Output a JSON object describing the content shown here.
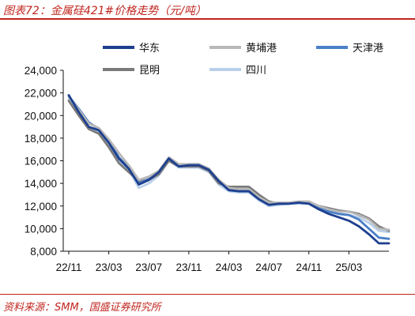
{
  "figure": {
    "title": "图表72：金属硅421#价格走势（元/吨）",
    "source": "资料来源：SMM，国盛证券研究所"
  },
  "chart_data": {
    "type": "line",
    "title": "图表72：金属硅421#价格走势（元/吨）",
    "xlabel": "",
    "ylabel": "",
    "y_unit": "元/吨",
    "ylim": [
      8000,
      24000
    ],
    "y_ticks": [
      8000,
      10000,
      12000,
      14000,
      16000,
      18000,
      20000,
      22000,
      24000
    ],
    "y_tick_labels": [
      "8,000",
      "10,000",
      "12,000",
      "14,000",
      "16,000",
      "18,000",
      "20,000",
      "22,000",
      "24,000"
    ],
    "x_range": [
      "2022-11",
      "2025-07"
    ],
    "x_ticks": [
      "2022-11",
      "2023-03",
      "2023-07",
      "2023-11",
      "2024-03",
      "2024-07",
      "2024-11",
      "2025-03"
    ],
    "x_tick_labels": [
      "22/11",
      "23/03",
      "23/07",
      "23/11",
      "24/03",
      "24/07",
      "24/11",
      "25/03"
    ],
    "grid": false,
    "legend": "top",
    "series": [
      {
        "name": "华东",
        "color": "#1d3f8f",
        "width": 2.8,
        "points": [
          [
            "2022-11",
            21800
          ],
          [
            "2022-12",
            20300
          ],
          [
            "2023-01",
            19000
          ],
          [
            "2023-02",
            18700
          ],
          [
            "2023-03",
            17600
          ],
          [
            "2023-04",
            16200
          ],
          [
            "2023-05",
            15300
          ],
          [
            "2023-06",
            13900
          ],
          [
            "2023-07",
            14300
          ],
          [
            "2023-08",
            15000
          ],
          [
            "2023-09",
            16200
          ],
          [
            "2023-10",
            15500
          ],
          [
            "2023-11",
            15600
          ],
          [
            "2023-12",
            15600
          ],
          [
            "2024-01",
            15200
          ],
          [
            "2024-02",
            14200
          ],
          [
            "2024-03",
            13400
          ],
          [
            "2024-04",
            13300
          ],
          [
            "2024-05",
            13300
          ],
          [
            "2024-06",
            12600
          ],
          [
            "2024-07",
            12100
          ],
          [
            "2024-08",
            12200
          ],
          [
            "2024-09",
            12200
          ],
          [
            "2024-10",
            12300
          ],
          [
            "2024-11",
            12200
          ],
          [
            "2024-12",
            11700
          ],
          [
            "2025-01",
            11300
          ],
          [
            "2025-02",
            11000
          ],
          [
            "2025-03",
            10700
          ],
          [
            "2025-04",
            10200
          ],
          [
            "2025-05",
            9500
          ],
          [
            "2025-06",
            8700
          ],
          [
            "2025-07",
            8700
          ]
        ]
      },
      {
        "name": "黄埔港",
        "color": "#b8b8b8",
        "width": 2.8,
        "points": [
          [
            "2022-11",
            21700
          ],
          [
            "2022-12",
            20500
          ],
          [
            "2023-01",
            19300
          ],
          [
            "2023-02",
            18900
          ],
          [
            "2023-03",
            17900
          ],
          [
            "2023-04",
            16700
          ],
          [
            "2023-05",
            15600
          ],
          [
            "2023-06",
            14300
          ],
          [
            "2023-07",
            14600
          ],
          [
            "2023-08",
            15100
          ],
          [
            "2023-09",
            16300
          ],
          [
            "2023-10",
            15700
          ],
          [
            "2023-11",
            15700
          ],
          [
            "2023-12",
            15700
          ],
          [
            "2024-01",
            15300
          ],
          [
            "2024-02",
            14300
          ],
          [
            "2024-03",
            13600
          ],
          [
            "2024-04",
            13500
          ],
          [
            "2024-05",
            13500
          ],
          [
            "2024-06",
            12800
          ],
          [
            "2024-07",
            12300
          ],
          [
            "2024-08",
            12300
          ],
          [
            "2024-09",
            12300
          ],
          [
            "2024-10",
            12400
          ],
          [
            "2024-11",
            12400
          ],
          [
            "2024-12",
            12000
          ],
          [
            "2025-01",
            11700
          ],
          [
            "2025-02",
            11500
          ],
          [
            "2025-03",
            11500
          ],
          [
            "2025-04",
            11200
          ],
          [
            "2025-05",
            10800
          ],
          [
            "2025-06",
            10000
          ],
          [
            "2025-07",
            9900
          ]
        ]
      },
      {
        "name": "天津港",
        "color": "#4a7fc8",
        "width": 2.8,
        "points": [
          [
            "2022-11",
            21700
          ],
          [
            "2022-12",
            20600
          ],
          [
            "2023-01",
            19400
          ],
          [
            "2023-02",
            18800
          ],
          [
            "2023-03",
            17800
          ],
          [
            "2023-04",
            16300
          ],
          [
            "2023-05",
            15400
          ],
          [
            "2023-06",
            14000
          ],
          [
            "2023-07",
            14400
          ],
          [
            "2023-08",
            15000
          ],
          [
            "2023-09",
            16200
          ],
          [
            "2023-10",
            15600
          ],
          [
            "2023-11",
            15700
          ],
          [
            "2023-12",
            15700
          ],
          [
            "2024-01",
            15300
          ],
          [
            "2024-02",
            14200
          ],
          [
            "2024-03",
            13500
          ],
          [
            "2024-04",
            13400
          ],
          [
            "2024-05",
            13400
          ],
          [
            "2024-06",
            12700
          ],
          [
            "2024-07",
            12200
          ],
          [
            "2024-08",
            12200
          ],
          [
            "2024-09",
            12200
          ],
          [
            "2024-10",
            12300
          ],
          [
            "2024-11",
            12300
          ],
          [
            "2024-12",
            11900
          ],
          [
            "2025-01",
            11500
          ],
          [
            "2025-02",
            11300
          ],
          [
            "2025-03",
            11200
          ],
          [
            "2025-04",
            10800
          ],
          [
            "2025-05",
            10000
          ],
          [
            "2025-06",
            9200
          ],
          [
            "2025-07",
            9100
          ]
        ]
      },
      {
        "name": "昆明",
        "color": "#7a7a7a",
        "width": 2.8,
        "points": [
          [
            "2022-11",
            21300
          ],
          [
            "2022-12",
            20000
          ],
          [
            "2023-01",
            18800
          ],
          [
            "2023-02",
            18400
          ],
          [
            "2023-03",
            17200
          ],
          [
            "2023-04",
            15800
          ],
          [
            "2023-05",
            15000
          ],
          [
            "2023-06",
            14200
          ],
          [
            "2023-07",
            14300
          ],
          [
            "2023-08",
            14800
          ],
          [
            "2023-09",
            16000
          ],
          [
            "2023-10",
            15500
          ],
          [
            "2023-11",
            15500
          ],
          [
            "2023-12",
            15500
          ],
          [
            "2024-01",
            15100
          ],
          [
            "2024-02",
            14000
          ],
          [
            "2024-03",
            13700
          ],
          [
            "2024-04",
            13700
          ],
          [
            "2024-05",
            13700
          ],
          [
            "2024-06",
            13000
          ],
          [
            "2024-07",
            12400
          ],
          [
            "2024-08",
            12200
          ],
          [
            "2024-09",
            12300
          ],
          [
            "2024-10",
            12300
          ],
          [
            "2024-11",
            12300
          ],
          [
            "2024-12",
            12000
          ],
          [
            "2025-01",
            11800
          ],
          [
            "2025-02",
            11600
          ],
          [
            "2025-03",
            11500
          ],
          [
            "2025-04",
            11300
          ],
          [
            "2025-05",
            10900
          ],
          [
            "2025-06",
            10200
          ],
          [
            "2025-07",
            9800
          ]
        ]
      },
      {
        "name": "四川",
        "color": "#b9d0ea",
        "width": 2.8,
        "points": [
          [
            "2022-11",
            21500
          ],
          [
            "2022-12",
            20200
          ],
          [
            "2023-01",
            19000
          ],
          [
            "2023-02",
            18600
          ],
          [
            "2023-03",
            17500
          ],
          [
            "2023-04",
            16000
          ],
          [
            "2023-05",
            15200
          ],
          [
            "2023-06",
            13600
          ],
          [
            "2023-07",
            14000
          ],
          [
            "2023-08",
            14700
          ],
          [
            "2023-09",
            16000
          ],
          [
            "2023-10",
            15400
          ],
          [
            "2023-11",
            15400
          ],
          [
            "2023-12",
            15400
          ],
          [
            "2024-01",
            15000
          ],
          [
            "2024-02",
            13900
          ],
          [
            "2024-03",
            13300
          ],
          [
            "2024-04",
            13200
          ],
          [
            "2024-05",
            13200
          ],
          [
            "2024-06",
            12500
          ],
          [
            "2024-07",
            12000
          ],
          [
            "2024-08",
            12100
          ],
          [
            "2024-09",
            12200
          ],
          [
            "2024-10",
            12200
          ],
          [
            "2024-11",
            12200
          ],
          [
            "2024-12",
            11800
          ],
          [
            "2025-01",
            11500
          ],
          [
            "2025-02",
            11300
          ],
          [
            "2025-03",
            11200
          ],
          [
            "2025-04",
            11000
          ],
          [
            "2025-05",
            10500
          ],
          [
            "2025-06",
            9800
          ],
          [
            "2025-07",
            9700
          ]
        ]
      }
    ]
  }
}
